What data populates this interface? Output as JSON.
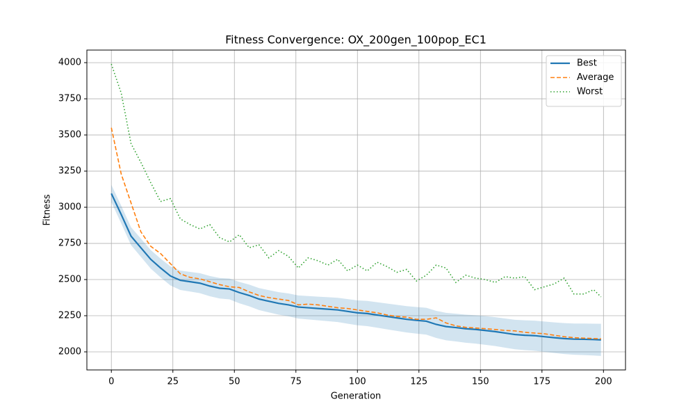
{
  "chart_data": {
    "type": "line",
    "title": "Fitness Convergence: OX_200gen_100pop_EC1",
    "x_label": "Generation",
    "y_label": "Fitness",
    "x": [
      0,
      4,
      8,
      12,
      16,
      20,
      24,
      28,
      32,
      36,
      40,
      44,
      48,
      52,
      56,
      60,
      64,
      68,
      72,
      76,
      80,
      84,
      88,
      92,
      96,
      100,
      104,
      108,
      112,
      116,
      120,
      124,
      128,
      132,
      136,
      140,
      144,
      148,
      152,
      156,
      160,
      164,
      168,
      172,
      176,
      180,
      184,
      188,
      192,
      196,
      199
    ],
    "series": [
      {
        "name": "Best",
        "color": "#1f77b4",
        "linestyle": "solid",
        "values": [
          3095,
          2950,
          2800,
          2720,
          2640,
          2580,
          2525,
          2495,
          2485,
          2475,
          2455,
          2440,
          2435,
          2410,
          2390,
          2365,
          2350,
          2335,
          2325,
          2310,
          2305,
          2300,
          2295,
          2290,
          2280,
          2270,
          2265,
          2255,
          2245,
          2235,
          2225,
          2218,
          2212,
          2190,
          2175,
          2168,
          2160,
          2155,
          2148,
          2140,
          2130,
          2120,
          2115,
          2112,
          2105,
          2098,
          2092,
          2088,
          2087,
          2085,
          2083
        ]
      },
      {
        "name": "Average",
        "color": "#ff7f0e",
        "linestyle": "dashed",
        "values": [
          3550,
          3230,
          3030,
          2830,
          2730,
          2680,
          2610,
          2540,
          2515,
          2505,
          2485,
          2465,
          2450,
          2445,
          2415,
          2390,
          2375,
          2365,
          2355,
          2325,
          2330,
          2325,
          2315,
          2305,
          2300,
          2290,
          2280,
          2270,
          2255,
          2245,
          2240,
          2225,
          2225,
          2235,
          2200,
          2180,
          2170,
          2165,
          2160,
          2155,
          2148,
          2145,
          2135,
          2130,
          2125,
          2115,
          2105,
          2098,
          2095,
          2092,
          2090
        ]
      },
      {
        "name": "Worst",
        "color": "#2ca02c",
        "linestyle": "dotted",
        "values": [
          3990,
          3790,
          3440,
          3310,
          3170,
          3040,
          3060,
          2920,
          2880,
          2850,
          2880,
          2790,
          2760,
          2810,
          2720,
          2740,
          2650,
          2700,
          2660,
          2580,
          2650,
          2630,
          2600,
          2640,
          2560,
          2600,
          2560,
          2620,
          2590,
          2550,
          2570,
          2490,
          2530,
          2600,
          2580,
          2480,
          2530,
          2510,
          2500,
          2480,
          2520,
          2510,
          2520,
          2430,
          2450,
          2470,
          2510,
          2400,
          2400,
          2430,
          2380
        ]
      }
    ],
    "band": {
      "color": "#1f77b4",
      "lower": [
        3035,
        2889,
        2738,
        2657,
        2576,
        2515,
        2459,
        2428,
        2417,
        2406,
        2385,
        2369,
        2363,
        2336,
        2315,
        2289,
        2273,
        2257,
        2246,
        2230,
        2224,
        2218,
        2212,
        2206,
        2195,
        2184,
        2178,
        2167,
        2156,
        2145,
        2134,
        2126,
        2119,
        2096,
        2080,
        2072,
        2063,
        2057,
        2049,
        2040,
        2029,
        2018,
        2012,
        2008,
        2000,
        1992,
        1985,
        1980,
        1978,
        1975,
        1972
      ],
      "upper": [
        3155,
        3011,
        2862,
        2783,
        2704,
        2645,
        2591,
        2562,
        2553,
        2544,
        2525,
        2511,
        2507,
        2484,
        2465,
        2441,
        2427,
        2413,
        2404,
        2390,
        2386,
        2382,
        2378,
        2374,
        2365,
        2356,
        2352,
        2343,
        2334,
        2325,
        2316,
        2310,
        2305,
        2284,
        2270,
        2264,
        2257,
        2253,
        2247,
        2240,
        2231,
        2222,
        2218,
        2216,
        2210,
        2204,
        2199,
        2196,
        2196,
        2195,
        2194
      ]
    },
    "xlim": [
      -9.95,
      208.95
    ],
    "ylim": [
      1875,
      4087
    ],
    "xticks": [
      0,
      25,
      50,
      75,
      100,
      125,
      150,
      175,
      200
    ],
    "yticks": [
      2000,
      2250,
      2500,
      2750,
      3000,
      3250,
      3500,
      3750,
      4000
    ],
    "grid": true,
    "legend": "upper right"
  }
}
